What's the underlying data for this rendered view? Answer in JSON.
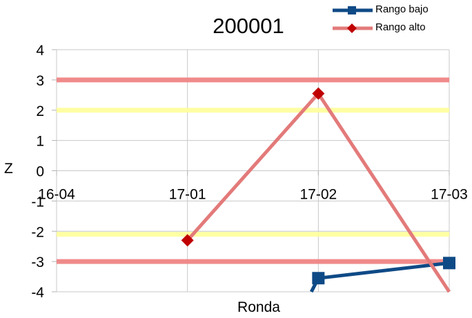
{
  "chart_data": {
    "type": "line",
    "title": "200001",
    "xlabel": "Ronda",
    "ylabel": "Z",
    "categories": [
      "16-04",
      "17-01",
      "17-02",
      "17-03"
    ],
    "ylim": [
      -4,
      4
    ],
    "yticks": [
      4,
      3,
      2,
      1,
      0,
      -1,
      -2,
      -3,
      -4
    ],
    "grid": true,
    "legend_position": "top-right",
    "series": [
      {
        "name": "Rango bajo",
        "color": "#0e4a86",
        "marker": "square",
        "values": [
          null,
          null,
          -3.55,
          -3.05
        ],
        "lead_in_from": -4.0
      },
      {
        "name": "Rango alto",
        "color": "#e37a7a",
        "marker_color": "#c00000",
        "marker": "diamond",
        "values": [
          null,
          -2.3,
          2.55,
          -4.0
        ]
      }
    ],
    "reference_lines": [
      {
        "y": 3,
        "color": "#f08080"
      },
      {
        "y": -3,
        "color": "#f08080"
      },
      {
        "y": 2,
        "color": "#ffff99"
      },
      {
        "y": -2.1,
        "color": "#ffff99"
      }
    ]
  }
}
